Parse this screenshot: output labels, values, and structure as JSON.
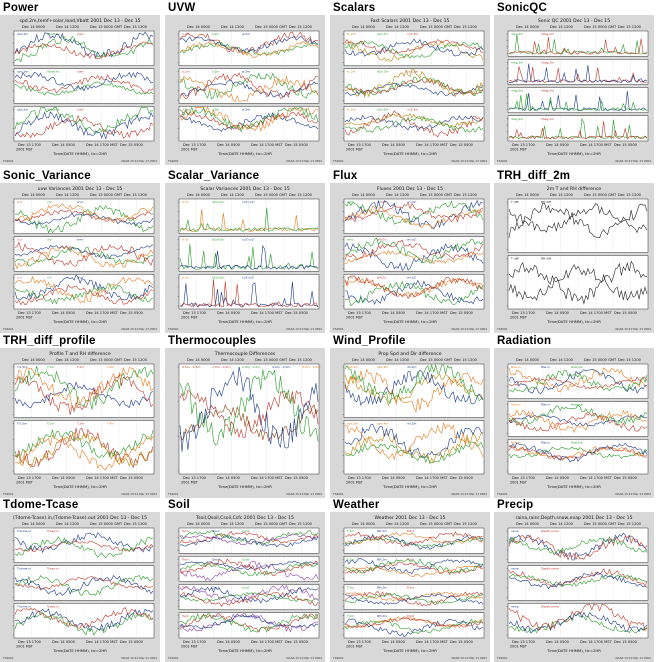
{
  "grid": [
    {
      "title": "Power",
      "plot_title": "spd.2m,temf+solar,load,Vbatt 2001 Dec 13 - Dec 15",
      "panels": 3,
      "colors": [
        "#1f3c88",
        "#2a9d2a",
        "#c0392b"
      ],
      "legend": [
        "spd.2m",
        "Vbatt.tic",
        "load"
      ],
      "kind": "ts"
    },
    {
      "title": "UVW",
      "plot_title": "",
      "panels": 3,
      "colors": [
        "#c0392b",
        "#2a9d2a",
        "#1f3c88",
        "#e67e22"
      ],
      "legend": [
        "u.2m",
        "v.2m",
        "w.2m"
      ],
      "kind": "ts"
    },
    {
      "title": "Scalars",
      "plot_title": "Fast Scalars 2001 Dec 13 - Dec 15",
      "panels": 3,
      "colors": [
        "#b8860b",
        "#2a9d2a",
        "#c0392b",
        "#1f3c88"
      ],
      "legend": [
        "tc.2m",
        "h2o.2m",
        "co2.2m"
      ],
      "kind": "ts"
    },
    {
      "title": "SonicQC",
      "plot_title": "Sonic QC 2001 Dec 13 - Dec 15",
      "panels": 4,
      "colors": [
        "#2a9d2a",
        "#c0392b",
        "#1f3c88"
      ],
      "legend": [
        "diag.2m",
        "ldiag.2m"
      ],
      "kind": "spike"
    },
    {
      "title": "Sonic_Variance",
      "plot_title": "uvw Variances 2001 Dec 13 - Dec 15",
      "panels": 3,
      "colors": [
        "#c0392b",
        "#2a9d2a",
        "#1f3c88",
        "#e67e22"
      ],
      "legend": [
        "u'u'",
        "v'v'",
        "w'w'"
      ],
      "kind": "ts"
    },
    {
      "title": "Scalar_Variance",
      "plot_title": "Scalar Variances 2001 Dec 13 - Dec 15",
      "panels": 3,
      "colors": [
        "#e67e22",
        "#2a9d2a",
        "#1f3c88",
        "#c0392b"
      ],
      "legend": [
        "tc'tc'",
        "h2o'h2o'",
        "co2'co2'"
      ],
      "kind": "spike"
    },
    {
      "title": "Flux",
      "plot_title": "Fluxes 2001 Dec 13 - Dec 15",
      "panels": 3,
      "colors": [
        "#2a9d2a",
        "#c0392b",
        "#1f3c88",
        "#e67e22"
      ],
      "legend": [
        "w'tc'",
        "w'h2o'",
        "w'co2'"
      ],
      "kind": "ts"
    },
    {
      "title": "TRH_diff_2m",
      "plot_title": "2m T and RH difference",
      "panels": 2,
      "colors": [
        "#222222",
        "#222222"
      ],
      "legend": [
        "T diff",
        "RH diff"
      ],
      "kind": "ts"
    },
    {
      "title": "TRH_diff_profile",
      "plot_title": "Profile T and RH difference",
      "panels": 2,
      "colors": [
        "#1f3c88",
        "#2a9d2a",
        "#c0392b",
        "#e67e22",
        "#b8860b"
      ],
      "legend": [
        "T.0.5m",
        "T.1m",
        "T.2m",
        "T.4m"
      ],
      "kind": "ts"
    },
    {
      "title": "Thermocouples",
      "plot_title": "Thermocouple Differences",
      "panels": 1,
      "colors": [
        "#8b4513",
        "#c0392b",
        "#2a9d2a",
        "#1f3c88",
        "#e67e22",
        "#777777"
      ],
      "legend": [
        "0.5m - 0.5m",
        "1.0m - 0.5m",
        "2.0m - 0.5m",
        "4.0m - 0.5m",
        "8.0m - 0.5m",
        "20m - 0.5m"
      ],
      "kind": "ts"
    },
    {
      "title": "Wind_Profile",
      "plot_title": "Prop Spd and Dir difference",
      "panels": 2,
      "colors": [
        "#e67e22",
        "#b8860b",
        "#1f3c88",
        "#2a9d2a"
      ],
      "legend": [
        "spd.2m",
        "spd.4m",
        "dir.2m"
      ],
      "kind": "ts"
    },
    {
      "title": "Radiation",
      "plot_title": "",
      "panels": 3,
      "colors": [
        "#e67e22",
        "#1f3c88",
        "#2a9d2a",
        "#c0392b"
      ],
      "legend": [
        "Rsw.in",
        "Rlw.in",
        "Rsw.out"
      ],
      "kind": "ts"
    },
    {
      "title": "Tdome-Tcase",
      "plot_title": "(Tdome-Tcase).in,(Tdome-Tcase).out 2001 Dec 13 - Dec 15",
      "panels": 3,
      "colors": [
        "#1f3c88",
        "#c0392b",
        "#2a9d2a"
      ],
      "legend": [
        "Tdome.in",
        "Tcase.in"
      ],
      "kind": "ts"
    },
    {
      "title": "Soil",
      "plot_title": "Tsoil,Qsoil,Csoil,Csfc 2001 Dec 13 - Dec 15",
      "panels": 4,
      "colors": [
        "#c0392b",
        "#1f3c88",
        "#2a9d2a",
        "#8e44ad"
      ],
      "legend": [
        "Tsoil",
        "Qsoil",
        "Csoil"
      ],
      "kind": "ts"
    },
    {
      "title": "Weather",
      "plot_title": "Weather 2001 Dec 13 - Dec 15",
      "panels": 4,
      "colors": [
        "#2a9d2a",
        "#1f3c88",
        "#c0392b",
        "#e67e22"
      ],
      "legend": [
        "T.2m",
        "RH.2m",
        "P.2m"
      ],
      "kind": "ts"
    },
    {
      "title": "Precip",
      "plot_title": "raina,rainr,Depth.snow,evap 2001 Dec 13 - Dec 15",
      "panels": 3,
      "colors": [
        "#1f3c88",
        "#c0392b",
        "#2a9d2a"
      ],
      "legend": [
        "raina",
        "Depth.snow"
      ],
      "kind": "ts"
    }
  ],
  "labels": {
    "top_axis": [
      "Dec 14 0000",
      "Dec 14 1200",
      "Dec 15 0000 GMT",
      "Dec 15 1200"
    ],
    "bottom_axis": [
      "Dec 13 1700",
      "Dec 14 0500",
      "Dec 14 1700 MST",
      "Dec 15 0500"
    ],
    "year": "2001 MST",
    "xlabel": "Time(DATE HHMM), tic=2HR",
    "footer_left": "TS2001",
    "footer_right": "NCAR 15:10 Mar 13 2002"
  }
}
